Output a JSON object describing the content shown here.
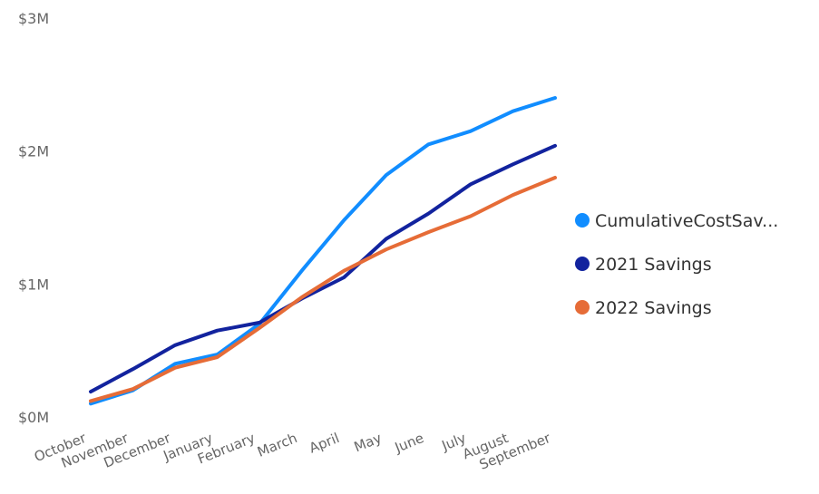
{
  "chart_data": {
    "type": "line",
    "categories": [
      "October",
      "November",
      "December",
      "January",
      "February",
      "March",
      "April",
      "May",
      "June",
      "July",
      "August",
      "September"
    ],
    "y_tick_labels": [
      "$0M",
      "$1M",
      "$2M",
      "$3M"
    ],
    "y_tick_values": [
      0,
      1000000,
      2000000,
      3000000
    ],
    "ylim": [
      0,
      3000000
    ],
    "grid": false,
    "legend_position": "right",
    "series": [
      {
        "name": "CumulativeCostSav...",
        "color": "#118DFF",
        "values": [
          100000,
          200000,
          400000,
          470000,
          700000,
          1100000,
          1480000,
          1820000,
          2050000,
          2150000,
          2300000,
          2400000
        ]
      },
      {
        "name": "2021 Savings",
        "color": "#12239E",
        "values": [
          190000,
          360000,
          540000,
          650000,
          710000,
          890000,
          1050000,
          1340000,
          1530000,
          1750000,
          1900000,
          2040000
        ]
      },
      {
        "name": "2022 Savings",
        "color": "#E66C37",
        "values": [
          120000,
          210000,
          370000,
          450000,
          670000,
          900000,
          1100000,
          1260000,
          1390000,
          1510000,
          1670000,
          1800000
        ]
      }
    ]
  }
}
